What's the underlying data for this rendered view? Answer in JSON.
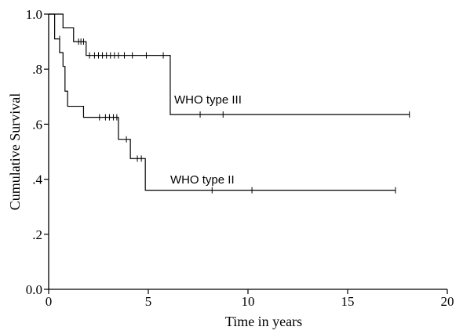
{
  "chart_data": {
    "type": "line",
    "title": "",
    "xlabel": "Time in years",
    "ylabel": "Cumulative Survival",
    "xlim": [
      0,
      20
    ],
    "ylim": [
      0,
      1
    ],
    "x_ticks": [
      0,
      5,
      10,
      15,
      20
    ],
    "x_tick_labels": [
      "0",
      "5",
      "10",
      "15",
      "20"
    ],
    "y_ticks": [
      0,
      0.2,
      0.4,
      0.6,
      0.8,
      1.0
    ],
    "y_tick_labels": [
      "0.0",
      ".2",
      ".4",
      ".6",
      ".8",
      "1.0"
    ],
    "grid": false,
    "line_color": "#000000",
    "series": [
      {
        "name": "WHO type III",
        "steps": [
          {
            "x": 0,
            "y": 1.0
          },
          {
            "x": 0.72,
            "y": 0.95
          },
          {
            "x": 1.25,
            "y": 0.9
          },
          {
            "x": 1.88,
            "y": 0.85
          },
          {
            "x": 6.1,
            "y": 0.635
          },
          {
            "x": 18.1,
            "y": 0.635
          }
        ],
        "censored": [
          {
            "x": 1.5,
            "y": 0.9
          },
          {
            "x": 1.62,
            "y": 0.9
          },
          {
            "x": 1.75,
            "y": 0.9
          },
          {
            "x": 2.05,
            "y": 0.85
          },
          {
            "x": 2.3,
            "y": 0.85
          },
          {
            "x": 2.5,
            "y": 0.85
          },
          {
            "x": 2.7,
            "y": 0.85
          },
          {
            "x": 2.9,
            "y": 0.85
          },
          {
            "x": 3.1,
            "y": 0.85
          },
          {
            "x": 3.3,
            "y": 0.85
          },
          {
            "x": 3.5,
            "y": 0.85
          },
          {
            "x": 3.8,
            "y": 0.85
          },
          {
            "x": 4.2,
            "y": 0.85
          },
          {
            "x": 4.9,
            "y": 0.85
          },
          {
            "x": 5.75,
            "y": 0.85
          },
          {
            "x": 7.6,
            "y": 0.635
          },
          {
            "x": 8.75,
            "y": 0.635
          },
          {
            "x": 18.1,
            "y": 0.635
          }
        ],
        "label_at": {
          "x": 6.3,
          "y": 0.675
        }
      },
      {
        "name": "WHO type II",
        "steps": [
          {
            "x": 0,
            "y": 1.0
          },
          {
            "x": 0.3,
            "y": 0.91
          },
          {
            "x": 0.55,
            "y": 0.86
          },
          {
            "x": 0.72,
            "y": 0.81
          },
          {
            "x": 0.82,
            "y": 0.72
          },
          {
            "x": 0.95,
            "y": 0.665
          },
          {
            "x": 1.75,
            "y": 0.625
          },
          {
            "x": 3.5,
            "y": 0.545
          },
          {
            "x": 4.1,
            "y": 0.475
          },
          {
            "x": 4.85,
            "y": 0.36
          },
          {
            "x": 17.4,
            "y": 0.36
          }
        ],
        "censored": [
          {
            "x": 0.55,
            "y": 0.91
          },
          {
            "x": 2.55,
            "y": 0.625
          },
          {
            "x": 2.85,
            "y": 0.625
          },
          {
            "x": 3.05,
            "y": 0.625
          },
          {
            "x": 3.25,
            "y": 0.625
          },
          {
            "x": 3.42,
            "y": 0.625
          },
          {
            "x": 3.9,
            "y": 0.545
          },
          {
            "x": 4.45,
            "y": 0.475
          },
          {
            "x": 4.65,
            "y": 0.475
          },
          {
            "x": 8.2,
            "y": 0.36
          },
          {
            "x": 10.2,
            "y": 0.36
          },
          {
            "x": 17.4,
            "y": 0.36
          }
        ],
        "label_at": {
          "x": 6.1,
          "y": 0.385
        }
      }
    ]
  }
}
